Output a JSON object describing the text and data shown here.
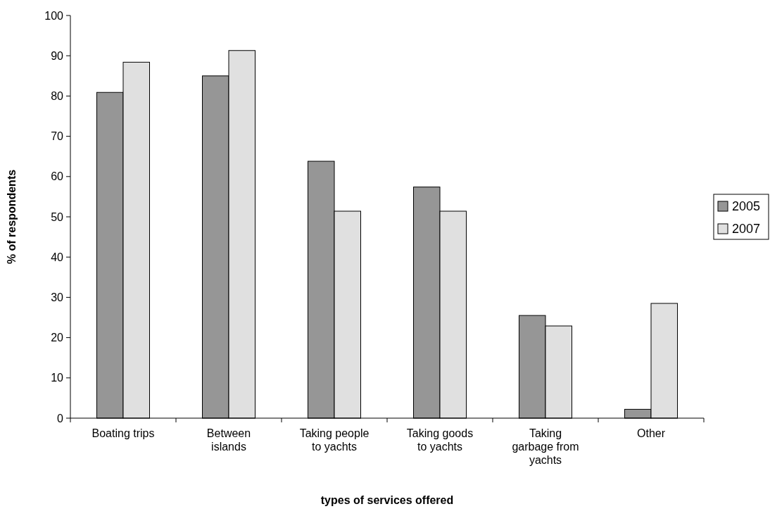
{
  "chart_data": {
    "type": "bar",
    "xlabel": "types of services offered",
    "ylabel": "% of respondents",
    "categories": [
      "Boating trips",
      "Between islands",
      "Taking people to yachts",
      "Taking goods to yachts",
      "Taking garbage from yachts",
      "Other"
    ],
    "series": [
      {
        "name": "2005",
        "color": "#969696",
        "values": [
          80.9,
          85.0,
          63.8,
          57.4,
          25.5,
          2.2
        ]
      },
      {
        "name": "2007",
        "color": "#e0e0e0",
        "values": [
          88.4,
          91.3,
          51.4,
          51.4,
          22.9,
          28.5
        ]
      }
    ],
    "ylim": [
      0,
      100
    ],
    "yticks": [
      0,
      10,
      20,
      30,
      40,
      50,
      60,
      70,
      80,
      90,
      100
    ],
    "grid": false,
    "legend": "right"
  }
}
